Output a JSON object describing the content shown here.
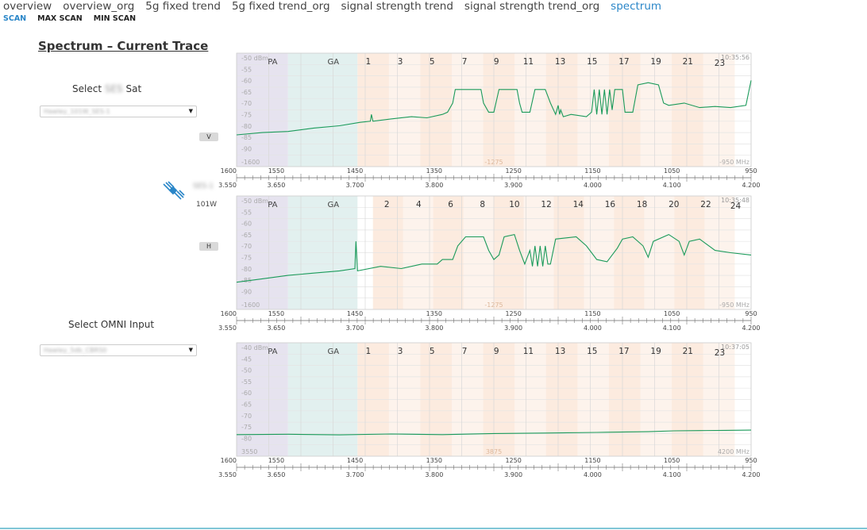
{
  "nav": {
    "tabs": [
      {
        "label": "overview",
        "active": false
      },
      {
        "label": "overview_org",
        "active": false
      },
      {
        "label": "5g fixed trend",
        "active": false
      },
      {
        "label": "5g fixed trend_org",
        "active": false
      },
      {
        "label": "signal strength trend",
        "active": false
      },
      {
        "label": "signal strength trend_org",
        "active": false
      },
      {
        "label": "spectrum",
        "active": true
      }
    ],
    "subtabs": [
      {
        "label": "SCAN",
        "active": true
      },
      {
        "label": "MAX SCAN",
        "active": false
      },
      {
        "label": "MIN SCAN",
        "active": false
      }
    ]
  },
  "page": {
    "title": "Spectrum – Current Trace"
  },
  "controls": {
    "select_sat_prefix": "Select",
    "select_sat_blur": "SES",
    "select_sat_suffix": "Sat",
    "sat_dropdown_value": "Hawley_101W_SES-1",
    "sat_name": "SES-1",
    "sat_longitude": "101W",
    "pol_v": "V",
    "pol_h": "H",
    "select_omni_label": "Select OMNI Input",
    "omni_dropdown_value": "Hawley_5db_CBRS0"
  },
  "colors": {
    "trace": "#1a9a5a",
    "accent": "#2a86c8",
    "pa_band": "#e6e3ef",
    "ga_band": "#e2f0ef",
    "transponder_band": "#fcebdf"
  },
  "charts": [
    {
      "id": "v",
      "timestamp": "10:35:56",
      "y_labels": [
        "-50 dBm",
        "-55",
        "-60",
        "-65",
        "-70",
        "-75",
        "-80",
        "-85",
        "-90"
      ],
      "bottom_left": "-1600",
      "bottom_mid": "-1275",
      "bottom_right": "-950 MHz",
      "band_labels": [
        "PA",
        "GA"
      ],
      "channels": [
        {
          "label": "1",
          "x": 0.256
        },
        {
          "label": "3",
          "x": 0.318
        },
        {
          "label": "5",
          "x": 0.38
        },
        {
          "label": "7",
          "x": 0.443
        },
        {
          "label": "9",
          "x": 0.505
        },
        {
          "label": "11",
          "x": 0.567
        },
        {
          "label": "13",
          "x": 0.629
        },
        {
          "label": "15",
          "x": 0.691
        },
        {
          "label": "17",
          "x": 0.753
        },
        {
          "label": "19",
          "x": 0.815
        },
        {
          "label": "21",
          "x": 0.877
        },
        {
          "label": "23",
          "x": 0.939
        }
      ],
      "trace": [
        [
          0,
          -86
        ],
        [
          0.05,
          -85
        ],
        [
          0.1,
          -84.5
        ],
        [
          0.15,
          -83
        ],
        [
          0.2,
          -82
        ],
        [
          0.24,
          -80.5
        ],
        [
          0.26,
          -80
        ],
        [
          0.262,
          -77
        ],
        [
          0.265,
          -80
        ],
        [
          0.3,
          -79
        ],
        [
          0.34,
          -78
        ],
        [
          0.37,
          -78.5
        ],
        [
          0.4,
          -77
        ],
        [
          0.41,
          -76
        ],
        [
          0.42,
          -72
        ],
        [
          0.425,
          -66
        ],
        [
          0.46,
          -66
        ],
        [
          0.475,
          -66
        ],
        [
          0.48,
          -72
        ],
        [
          0.49,
          -76
        ],
        [
          0.5,
          -76
        ],
        [
          0.51,
          -66
        ],
        [
          0.545,
          -66
        ],
        [
          0.55,
          -72
        ],
        [
          0.555,
          -76
        ],
        [
          0.57,
          -76
        ],
        [
          0.58,
          -66
        ],
        [
          0.6,
          -66
        ],
        [
          0.61,
          -72
        ],
        [
          0.62,
          -77
        ],
        [
          0.625,
          -73
        ],
        [
          0.628,
          -77
        ],
        [
          0.63,
          -75
        ],
        [
          0.635,
          -78
        ],
        [
          0.65,
          -77
        ],
        [
          0.68,
          -78
        ],
        [
          0.69,
          -76
        ],
        [
          0.695,
          -66
        ],
        [
          0.7,
          -77
        ],
        [
          0.705,
          -66
        ],
        [
          0.71,
          -77
        ],
        [
          0.715,
          -66
        ],
        [
          0.72,
          -77
        ],
        [
          0.725,
          -66
        ],
        [
          0.73,
          -75
        ],
        [
          0.735,
          -66
        ],
        [
          0.75,
          -66
        ],
        [
          0.755,
          -76
        ],
        [
          0.77,
          -76
        ],
        [
          0.78,
          -64
        ],
        [
          0.8,
          -63
        ],
        [
          0.82,
          -64
        ],
        [
          0.83,
          -72
        ],
        [
          0.84,
          -73
        ],
        [
          0.87,
          -72
        ],
        [
          0.9,
          -74
        ],
        [
          0.93,
          -73.5
        ],
        [
          0.96,
          -74
        ],
        [
          0.99,
          -73
        ],
        [
          1.0,
          -62
        ]
      ]
    },
    {
      "id": "h",
      "timestamp": "10:35:48",
      "y_labels": [
        "-50 dBm",
        "-55",
        "-60",
        "-65",
        "-70",
        "-75",
        "-80",
        "-85",
        "-90"
      ],
      "bottom_left": "-1600",
      "bottom_mid": "-1275",
      "bottom_right": "-950 MHz",
      "band_labels": [
        "PA",
        "GA"
      ],
      "channels": [
        {
          "label": "2",
          "x": 0.292
        },
        {
          "label": "4",
          "x": 0.354
        },
        {
          "label": "6",
          "x": 0.416
        },
        {
          "label": "8",
          "x": 0.478
        },
        {
          "label": "10",
          "x": 0.54
        },
        {
          "label": "12",
          "x": 0.602
        },
        {
          "label": "14",
          "x": 0.664
        },
        {
          "label": "16",
          "x": 0.726
        },
        {
          "label": "18",
          "x": 0.788
        },
        {
          "label": "20",
          "x": 0.85
        },
        {
          "label": "22",
          "x": 0.912
        },
        {
          "label": "24",
          "x": 0.97
        }
      ],
      "trace": [
        [
          0,
          -88
        ],
        [
          0.05,
          -86.5
        ],
        [
          0.1,
          -85
        ],
        [
          0.15,
          -84
        ],
        [
          0.2,
          -83
        ],
        [
          0.23,
          -82
        ],
        [
          0.232,
          -70
        ],
        [
          0.235,
          -83
        ],
        [
          0.28,
          -81
        ],
        [
          0.32,
          -82
        ],
        [
          0.36,
          -80
        ],
        [
          0.39,
          -80
        ],
        [
          0.4,
          -78
        ],
        [
          0.42,
          -78
        ],
        [
          0.43,
          -72
        ],
        [
          0.445,
          -68
        ],
        [
          0.48,
          -68
        ],
        [
          0.49,
          -74
        ],
        [
          0.5,
          -78
        ],
        [
          0.51,
          -76
        ],
        [
          0.52,
          -68
        ],
        [
          0.54,
          -67
        ],
        [
          0.55,
          -74
        ],
        [
          0.56,
          -80
        ],
        [
          0.57,
          -74
        ],
        [
          0.575,
          -81
        ],
        [
          0.58,
          -72
        ],
        [
          0.585,
          -81
        ],
        [
          0.59,
          -72
        ],
        [
          0.595,
          -81
        ],
        [
          0.6,
          -72
        ],
        [
          0.605,
          -80
        ],
        [
          0.61,
          -80
        ],
        [
          0.62,
          -69
        ],
        [
          0.66,
          -68
        ],
        [
          0.68,
          -72
        ],
        [
          0.7,
          -78
        ],
        [
          0.72,
          -79
        ],
        [
          0.74,
          -73
        ],
        [
          0.75,
          -69
        ],
        [
          0.77,
          -68
        ],
        [
          0.79,
          -72
        ],
        [
          0.8,
          -77
        ],
        [
          0.81,
          -70
        ],
        [
          0.84,
          -67
        ],
        [
          0.86,
          -70
        ],
        [
          0.87,
          -76
        ],
        [
          0.88,
          -70
        ],
        [
          0.9,
          -69
        ],
        [
          0.93,
          -74
        ],
        [
          0.96,
          -75
        ],
        [
          1.0,
          -76
        ]
      ]
    },
    {
      "id": "omni",
      "timestamp": "10:37:05",
      "y_labels": [
        "-40 dBm",
        "-45",
        "-50",
        "-55",
        "-60",
        "-65",
        "-70",
        "-75",
        "-80"
      ],
      "bottom_left": "3550",
      "bottom_mid": "3875",
      "bottom_right": "4200 MHz",
      "band_labels": [
        "PA",
        "GA"
      ],
      "channels": [
        {
          "label": "1",
          "x": 0.256
        },
        {
          "label": "3",
          "x": 0.318
        },
        {
          "label": "5",
          "x": 0.38
        },
        {
          "label": "7",
          "x": 0.443
        },
        {
          "label": "9",
          "x": 0.505
        },
        {
          "label": "11",
          "x": 0.567
        },
        {
          "label": "13",
          "x": 0.629
        },
        {
          "label": "15",
          "x": 0.691
        },
        {
          "label": "17",
          "x": 0.753
        },
        {
          "label": "19",
          "x": 0.815
        },
        {
          "label": "21",
          "x": 0.877
        },
        {
          "label": "23",
          "x": 0.939
        }
      ],
      "trace": [
        [
          0,
          -80.5
        ],
        [
          0.1,
          -80.3
        ],
        [
          0.2,
          -80.6
        ],
        [
          0.3,
          -80.2
        ],
        [
          0.4,
          -80.5
        ],
        [
          0.5,
          -80
        ],
        [
          0.6,
          -79.8
        ],
        [
          0.7,
          -79.5
        ],
        [
          0.8,
          -79.2
        ],
        [
          0.85,
          -78.8
        ],
        [
          0.9,
          -78.7
        ],
        [
          0.95,
          -78.6
        ],
        [
          1.0,
          -78.5
        ]
      ]
    }
  ],
  "axis": {
    "top_labels": [
      "1600",
      "1550",
      "1450",
      "1350",
      "1250",
      "1150",
      "1050",
      "950"
    ],
    "bottom_labels": [
      "3.550",
      "3.650",
      "3.700",
      "3.800",
      "3.900",
      "4.000",
      "4.100",
      "4.200"
    ]
  }
}
